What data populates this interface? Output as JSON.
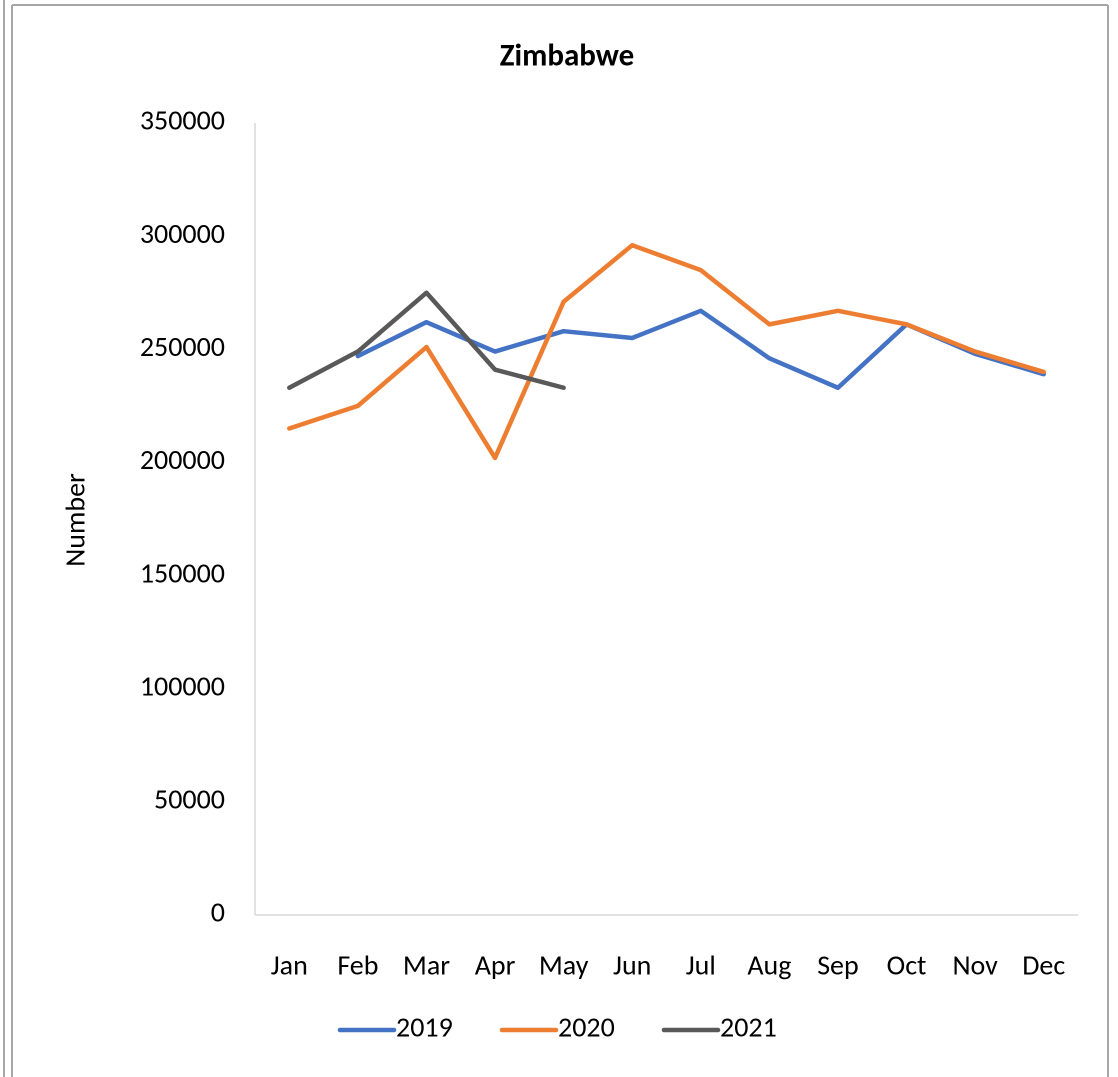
{
  "chart_data": {
    "type": "line",
    "title": "Zimbabwe",
    "y_label": "Number",
    "categories": [
      "Jan",
      "Feb",
      "Mar",
      "Apr",
      "May",
      "Jun",
      "Jul",
      "Aug",
      "Sep",
      "Oct",
      "Nov",
      "Dec"
    ],
    "series": [
      {
        "name": "2019",
        "color": "#4472c4",
        "values": [
          null,
          247000,
          262000,
          249000,
          258000,
          255000,
          267000,
          246000,
          233000,
          261000,
          248000,
          239000
        ]
      },
      {
        "name": "2020",
        "color": "#ed7d31",
        "values": [
          215000,
          225000,
          251000,
          202000,
          271000,
          296000,
          285000,
          261000,
          267000,
          261000,
          249000,
          240000
        ]
      },
      {
        "name": "2021",
        "color": "#595959",
        "values": [
          233000,
          249000,
          275000,
          241000,
          233000,
          null,
          null,
          null,
          null,
          null,
          null,
          null
        ]
      }
    ],
    "ylim": [
      0,
      350000
    ],
    "yticks": [
      0,
      50000,
      100000,
      150000,
      200000,
      250000,
      300000,
      350000
    ],
    "grid": false,
    "legend": "bottom"
  }
}
